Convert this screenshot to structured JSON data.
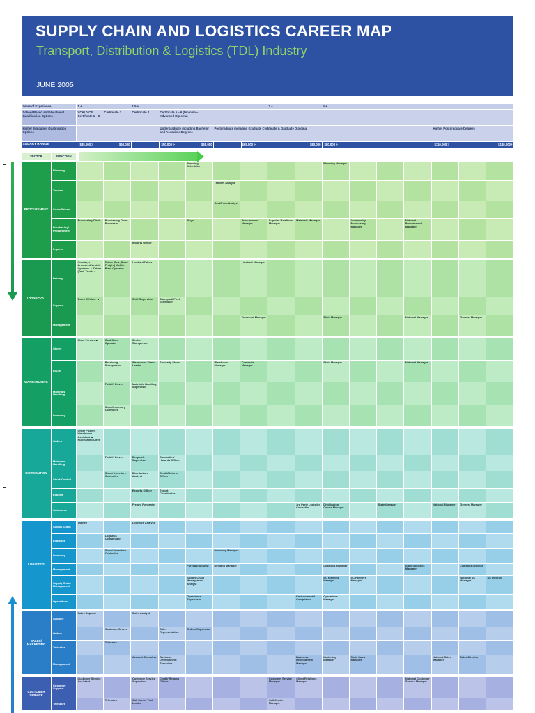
{
  "header": {
    "title": "SUPPLY CHAIN AND LOGISTICS CAREER MAP",
    "subtitle": "Transport, Distribution & Logistics (TDL) Industry",
    "date": "JUNE 2005"
  },
  "info_rows": {
    "years_label": "Years of Experience",
    "years": [
      "1 +",
      "1.5 +",
      "3 +",
      "4 +"
    ],
    "school_label": "School Based and Vocational Qualification Options",
    "school": [
      "VCAL/VCE Certificate 1 – 2",
      "Certificate 3",
      "Certificate 4",
      "Certificate 5 – 6 (Diploma – Advanced Diploma)"
    ],
    "higher_label": "Higher Education Qualification Options",
    "higher": [
      "Undergraduate including Bachelor and Associate Degrees",
      "Postgraduate including Graduate Certificate & Graduate Diploma",
      "Higher Postgraduate Degrees"
    ],
    "salary_label": "SALARY RANGE",
    "salary": [
      "$35,000 >",
      "$50,000",
      "$50,000 >",
      "$65,000",
      "$65,000 >",
      "$80,000",
      "$80,000 >",
      "$110,000 >",
      "$140,000+"
    ]
  },
  "column_headers": {
    "sector": "SECTOR",
    "function": "FUNCTION"
  },
  "sectors": [
    {
      "name": "PROCUREMENT",
      "color": "#1e9e4a",
      "functions": [
        {
          "name": "Planning",
          "cells": {
            "4": "Planning Scheduler",
            "9": "Planning Manager"
          }
        },
        {
          "name": "Tenders",
          "cells": {
            "5": "Tenders Analyst"
          }
        },
        {
          "name": "Costs/Prices",
          "cells": {
            "5": "Cost/Price Analyst"
          }
        },
        {
          "name": "Purchasing/ Procurement",
          "cells": {
            "0": "Purchasing Clerk",
            "1": "Purchasing Order Processor",
            "4": "Buyer",
            "6": "Procurement Manager",
            "7": "Supplier Relations Manager",
            "8": "Materials Manager",
            "10": "Commodity Purchasing Manager",
            "12": "National Procurement Manager"
          }
        },
        {
          "name": "Imports",
          "cells": {
            "2": "Imports Officer"
          }
        }
      ]
    },
    {
      "name": "TRANSPORT",
      "color": "#1a9a50",
      "functions": [
        {
          "name": "Driving",
          "cells": {
            "0": "Courier,▲ Armoured Vehicle Operator ▲ Driver (Taxi, Truck)▲",
            "1": "Driver (Bus, Road Freight) Mobile Plant Operator",
            "2": "Linehaul Driver",
            "6": "Linehaul Manager"
          }
        },
        {
          "name": "Support",
          "cells": {
            "0": "Truck Offsider ▲",
            "2": "Shift Supervisor",
            "3": "Transport/ Fleet Scheduler"
          }
        },
        {
          "name": "Management",
          "cells": {
            "6": "Transport Manager",
            "9": "State Manager",
            "12": "National Manager",
            "14": "General Manager"
          }
        }
      ]
    },
    {
      "name": "WAREHOUSING",
      "color": "#14a064",
      "functions": [
        {
          "name": "Stores",
          "cells": {
            "0": "Store Person ▲",
            "1": "Cold Store Operator",
            "2": "Senior Storeperson"
          }
        },
        {
          "name": "In/Out",
          "cells": {
            "1": "Receiving Storeperson",
            "2": "Warehouse Team Leader",
            "3": "Specialty Stores",
            "5": "Warehouse Manager",
            "6": "Contracts Manager",
            "9": "State Manager",
            "12": "National Manager"
          }
        },
        {
          "name": "Materials Handling",
          "cells": {
            "1": "Forklift Driver",
            "2": "Materials Handling Supervisor"
          }
        },
        {
          "name": "Inventory",
          "cells": {
            "1": "Stock/Inventory Controller"
          }
        }
      ]
    },
    {
      "name": "DISTRIBUTION",
      "color": "#18a89a",
      "functions": [
        {
          "name": "Orders",
          "cells": {
            "0": "Order Picker/ Warehouse Assistant ▲ Purchasing Clerk"
          }
        },
        {
          "name": "Materials Handling",
          "cells": {
            "1": "Forklift Driver",
            "2": "Despatch Supervisor",
            "3": "Specialties/ Hazards Officer"
          }
        },
        {
          "name": "Stock Control",
          "cells": {
            "1": "Stock/ Inventory Controller",
            "2": "Distribution Analyst",
            "3": "Credit/Returns Officer"
          }
        },
        {
          "name": "Exports",
          "cells": {
            "2": "Exports Officer",
            "3": "Export Coordinator"
          }
        },
        {
          "name": "Outsource",
          "cells": {
            "2": "Freight Forwarder",
            "8": "3rd Party Logistics Controller",
            "9": "Distribution Centre Manager",
            "11": "State Manager",
            "13": "National Manager",
            "14": "General Manager"
          }
        }
      ]
    },
    {
      "name": "LOGISTICS",
      "color": "#1596cc",
      "functions": [
        {
          "name": "Supply Chain",
          "cells": {
            "0": "Trainee",
            "2": "Logistics Analyst"
          }
        },
        {
          "name": "Logistics",
          "cells": {
            "1": "Logistics Coordinator"
          }
        },
        {
          "name": "Inventory",
          "cells": {
            "1": "Stock/ Inventory Controller",
            "5": "Inventory Manager"
          }
        },
        {
          "name": "Management",
          "cells": {
            "4": "Forecast Analyst",
            "5": "Demand Manager",
            "9": "Logistics Manager",
            "12": "State Logistics Manager",
            "14": "Logistics Director"
          }
        },
        {
          "name": "Supply Chain Management",
          "cells": {
            "4": "Supply Chain Management Analyst",
            "9": "SC Planning Manager",
            "10": "SC Partners Manager",
            "14": "National SC Manager",
            "15": "SC Director"
          }
        },
        {
          "name": "Operations",
          "cells": {
            "4": "Operations Supervisor",
            "8": "Environmental Compliance",
            "9": "Operations Manager"
          }
        }
      ]
    },
    {
      "name": "SALES/ MARKETING",
      "color": "#2a7ec8",
      "functions": [
        {
          "name": "Support",
          "cells": {
            "0": "Sales Support",
            "2": "Sales Analyst"
          }
        },
        {
          "name": "Orders",
          "cells": {
            "1": "Customer Orders",
            "3": "Sales Representative",
            "4": "Orders Supervisor"
          }
        },
        {
          "name": "Telesales",
          "cells": {
            "1": "Telesales"
          }
        },
        {
          "name": "Management",
          "cells": {
            "2": "Account Executive",
            "3": "Business Development Executive",
            "8": "Business Development Manager",
            "9": "Marketing Manager",
            "10": "State Sales Manager",
            "13": "National Sales Manager",
            "14": "Sales Director"
          }
        }
      ]
    },
    {
      "name": "CUSTOMER SERVICE",
      "color": "#3c5fb2",
      "functions": [
        {
          "name": "Customer Support",
          "cells": {
            "0": "Customer Service Assistant",
            "2": "Customer Service Supervisor",
            "3": "Credit/ Returns Officer",
            "7": "Customer Service Manager",
            "8": "Client Relations Manager",
            "12": "National Customer Service Manager"
          }
        },
        {
          "name": "Telesales",
          "cells": {
            "1": "Telesales",
            "2": "Call Centre Test Leader",
            "7": "Call Centre Manager"
          }
        }
      ]
    }
  ]
}
